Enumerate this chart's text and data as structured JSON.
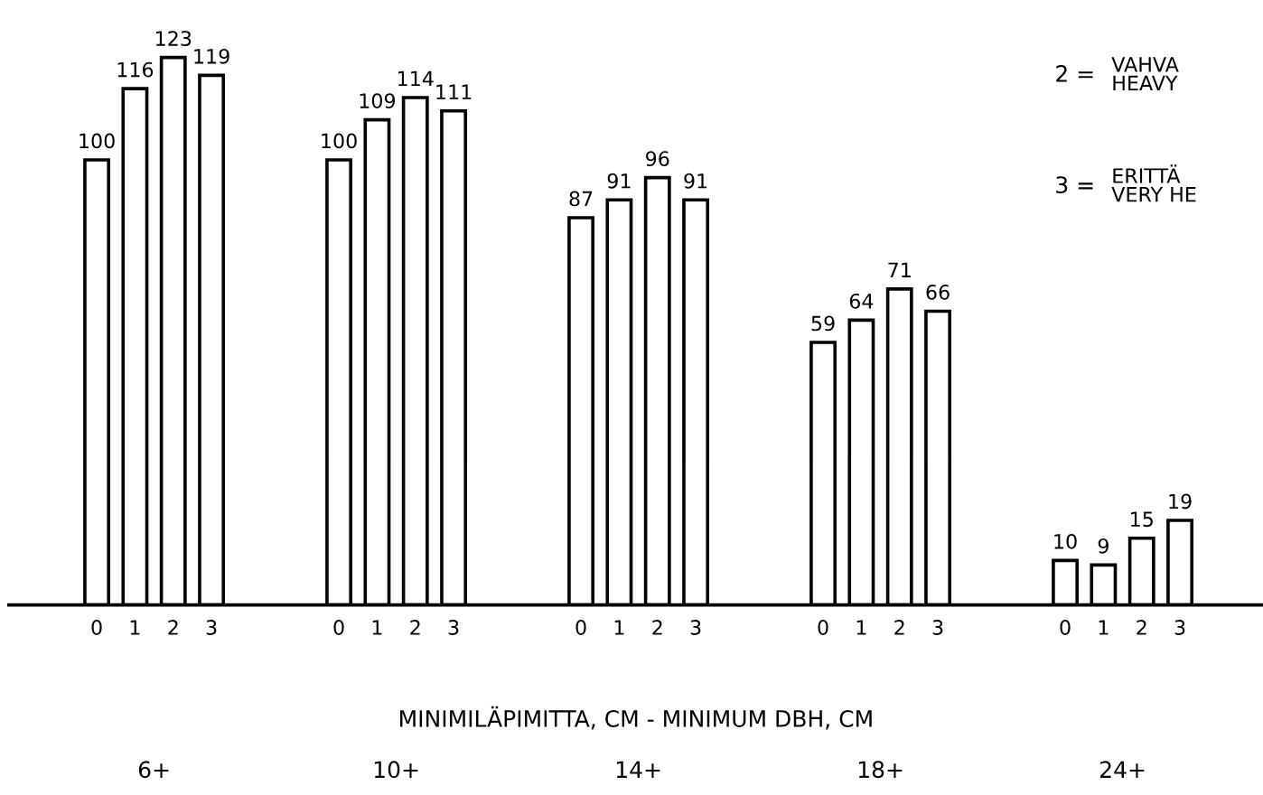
{
  "chart_data": {
    "type": "bar",
    "categories": [
      "6+",
      "10+",
      "14+",
      "18+",
      "24+"
    ],
    "series": [
      {
        "name": "0",
        "color": "#ffffff",
        "values": [
          100,
          100,
          87,
          59,
          10
        ]
      },
      {
        "name": "1",
        "color": "#ffffff",
        "values": [
          116,
          109,
          91,
          64,
          9
        ]
      },
      {
        "name": "2",
        "color": "#ffffff",
        "values": [
          123,
          114,
          96,
          71,
          15
        ]
      },
      {
        "name": "3",
        "color": "#ffffff",
        "values": [
          119,
          111,
          91,
          66,
          19
        ]
      }
    ],
    "data_labels": true,
    "grid": false,
    "xlabel": "MINIMILÄPIMITTA, CM - MINIMUM DBH, CM",
    "annotations": [
      "2 =",
      "VAHVA\nHEAVY",
      "3 =",
      "ERITTÄ\nVERY HE"
    ]
  }
}
